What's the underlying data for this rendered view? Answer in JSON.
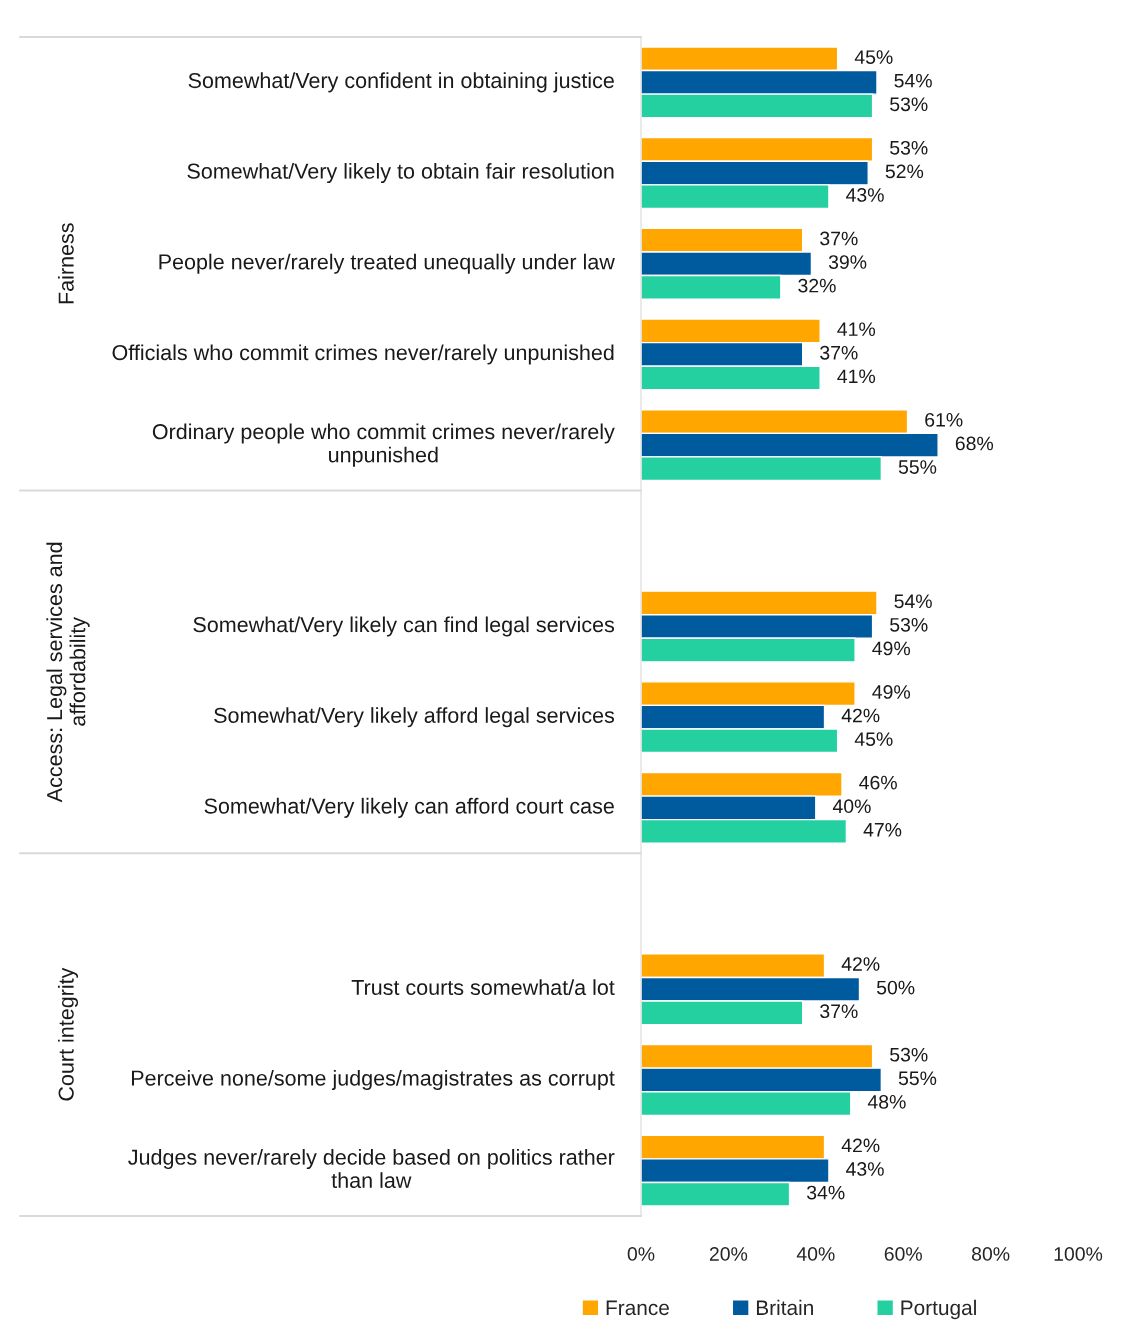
{
  "chart_data": {
    "type": "bar",
    "orientation": "horizontal",
    "categories": [
      "Somewhat/Very confident in obtaining justice",
      "Somewhat/Very likely to obtain fair resolution",
      "People never/rarely treated unequally under law",
      "Officials who commit crimes never/rarely unpunished",
      "Ordinary people who commit crimes never/rarely unpunished",
      null,
      "Somewhat/Very likely can find legal services",
      "Somewhat/Very likely afford legal services",
      "Somewhat/Very likely can afford court case",
      null,
      "Trust courts somewhat/a lot",
      "Perceive none/some judges/magistrates as corrupt",
      "Judges never/rarely decide based on politics rather than law"
    ],
    "series": [
      {
        "name": "France",
        "color": "#ffa600",
        "values": [
          45,
          53,
          37,
          41,
          61,
          null,
          54,
          49,
          46,
          null,
          42,
          53,
          42
        ],
        "value_labels": [
          "45%",
          "53%",
          "37%",
          "41%",
          "61%",
          null,
          "54%",
          "49%",
          "46%",
          null,
          "42%",
          "53%",
          "42%"
        ]
      },
      {
        "name": "Britain",
        "color": "#005a9e",
        "values": [
          54,
          52,
          39,
          37,
          68,
          null,
          53,
          42,
          40,
          null,
          50,
          55,
          43
        ],
        "value_labels": [
          "54%",
          "52%",
          "39%",
          "37%",
          "68%",
          null,
          "53%",
          "42%",
          "40%",
          null,
          "50%",
          "55%",
          "43%"
        ]
      },
      {
        "name": "Portugal",
        "color": "#24d0a0",
        "values": [
          53,
          43,
          32,
          41,
          55,
          null,
          49,
          45,
          47,
          null,
          37,
          48,
          34
        ],
        "value_labels": [
          "53%",
          "43%",
          "32%",
          "41%",
          "55%",
          null,
          "49%",
          "45%",
          "47%",
          null,
          "37%",
          "48%",
          "34%"
        ]
      }
    ],
    "xlim": [
      0,
      100
    ],
    "xticks": [
      {
        "value": 0,
        "label": "0%"
      },
      {
        "value": 20,
        "label": "20%"
      },
      {
        "value": 40,
        "label": "40%"
      },
      {
        "value": 60,
        "label": "60%"
      },
      {
        "value": 80,
        "label": "80%"
      },
      {
        "value": 100,
        "label": "100%"
      }
    ],
    "annotations": [
      "Fairness",
      "Access: Legal services and affordability",
      "Court integrity"
    ],
    "legend": "bottom",
    "grid": false
  }
}
